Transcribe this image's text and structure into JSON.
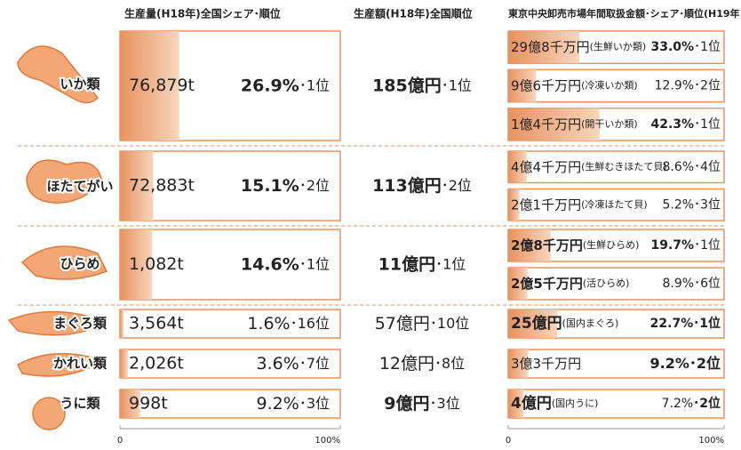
{
  "headers": {
    "production": "生産量(H18年)全国シェア･順位",
    "value": "生産額(H18年)全国順位",
    "market": "東京中央卸売市場年間取扱金額･シェア･順位(H19年)"
  },
  "axis": {
    "min": 0,
    "max": {
      "value": 100,
      "label": "100%"
    }
  },
  "rows": [
    {
      "name": "いか類",
      "production": {
        "amount": "76,879t",
        "share": {
          "value": 26.9,
          "label": "26.9%"
        },
        "rank": "･1位"
      },
      "value": {
        "amount": "185億円",
        "rank": "･1位"
      },
      "market": [
        {
          "amount": "29億8千万円",
          "product": "(生鮮いか類)",
          "share": {
            "value": 33.0,
            "label": "33.0%"
          },
          "rank": "･1位"
        },
        {
          "amount": "9億6千万円",
          "product": "(冷凍いか類)",
          "share": {
            "value": 12.9,
            "label": "12.9%"
          },
          "rank": "･2位"
        },
        {
          "amount": "1億4千万円",
          "product": "(開干いか類)",
          "share": {
            "value": 42.3,
            "label": "42.3%"
          },
          "rank": "･1位"
        }
      ]
    },
    {
      "name": "ほたてがい",
      "production": {
        "amount": "72,883t",
        "share": {
          "value": 15.1,
          "label": "15.1%"
        },
        "rank": "･2位"
      },
      "value": {
        "amount": "113億円",
        "rank": "･2位"
      },
      "market": [
        {
          "amount": "4億4千万円",
          "product": "(生鮮むきほたて貝)",
          "share": {
            "value": 8.6,
            "label": "8.6%"
          },
          "rank": "･4位"
        },
        {
          "amount": "2億1千万円",
          "product": "(冷凍ほたて貝)",
          "share": {
            "value": 5.2,
            "label": "5.2%"
          },
          "rank": "･3位"
        }
      ]
    },
    {
      "name": "ひらめ",
      "production": {
        "amount": "1,082t",
        "share": {
          "value": 14.6,
          "label": "14.6%"
        },
        "rank": "･1位"
      },
      "value": {
        "amount": "11億円",
        "rank": "･1位"
      },
      "market": [
        {
          "amount": "2億8千万円",
          "product": "(生鮮ひらめ)",
          "share": {
            "value": 19.7,
            "label": "19.7%"
          },
          "rank": "･1位"
        },
        {
          "amount": "2億5千万円",
          "product": "(活ひらめ)",
          "share": {
            "value": 8.9,
            "label": "8.9%"
          },
          "rank": "･6位"
        }
      ]
    },
    {
      "name": "まぐろ類",
      "production": {
        "amount": "3,564t",
        "share": {
          "value": 1.6,
          "label": "1.6%"
        },
        "rank": "･16位"
      },
      "value": {
        "amount": "57億円",
        "rank": "･10位"
      },
      "market": [
        {
          "amount": "25億円",
          "product": "(国内まぐろ)",
          "share": {
            "value": 22.7,
            "label": "22.7%"
          },
          "rank": "･1位"
        }
      ]
    },
    {
      "name": "かれい類",
      "production": {
        "amount": "2,026t",
        "share": {
          "value": 3.6,
          "label": "3.6%"
        },
        "rank": "･7位"
      },
      "value": {
        "amount": "12億円",
        "rank": "･8位"
      },
      "market": [
        {
          "amount": "3億3千万円",
          "share": {
            "value": 9.2,
            "label": "9.2%"
          },
          "rank": "･2位"
        }
      ]
    },
    {
      "name": "うに類",
      "production": {
        "amount": "998t",
        "share": {
          "value": 9.2,
          "label": "9.2%"
        },
        "rank": "･3位"
      },
      "value": {
        "amount": "9億円",
        "rank": "･3位"
      },
      "market": [
        {
          "amount": "4億円",
          "product": "(国内うに)",
          "share": {
            "value": 7.2,
            "label": "7.2%"
          },
          "rank": "･2位"
        }
      ]
    }
  ]
}
